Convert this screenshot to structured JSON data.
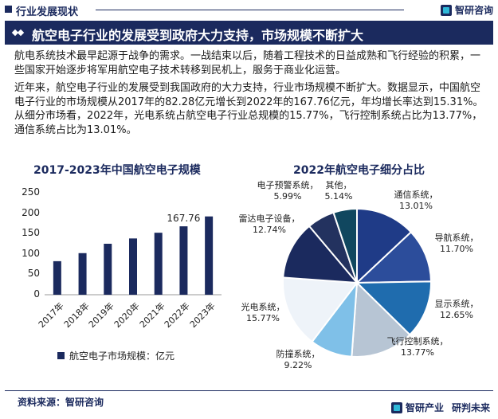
{
  "section_label": "行业发展现状",
  "brand": "智研咨询",
  "headline": "航空电子行业的发展受到政府大力支持，市场规模不断扩大",
  "paragraphs": [
    "航电系统技术最早起源于战争的需求。一战结束以后，随着工程技术的日益成熟和飞行经验的积累，一些国家开始逐步将军用航空电子技术转移到民机上，服务于商业化运营。",
    "近年来，航空电子行业的发展受到我国政府的大力支持，行业市场规模不断扩大。数据显示，中国航空电子行业的市场规模从2017年的82.28亿元增长到2022年的167.76亿元，年均增长率达到15.31%。从细分市场看，2022年，光电系统占航空电子行业总规模的15.77%，飞行控制系统占比为13.77%，通信系统占比为13.01%。"
  ],
  "footer": {
    "source": "资料来源：智研咨询",
    "slogan_left": "智研产业",
    "slogan_right": "研判未来"
  },
  "chart_data": [
    {
      "type": "bar",
      "title": "2017-2023年中国航空电子规模",
      "categories": [
        "2017年",
        "2018年",
        "2019年",
        "2020年",
        "2021年",
        "2022年",
        "2023年"
      ],
      "series": [
        {
          "name": "航空电子市场规模：亿元",
          "values": [
            82.28,
            102,
            125,
            138,
            152,
            167.76,
            192
          ]
        }
      ],
      "data_labels": [
        {
          "category": "2022年",
          "text": "167.76"
        }
      ],
      "yticks": [
        "0",
        "50",
        "100",
        "150",
        "200",
        "250"
      ],
      "ylim": [
        0,
        250
      ],
      "grid": false,
      "legend_position": "bottom",
      "color": "#1b2a5e"
    },
    {
      "type": "pie",
      "title": "2022年航空电子细分占比",
      "slices": [
        {
          "label": "通信系统，",
          "value": 13.01,
          "text": "13.01%",
          "color": "#1f3b87"
        },
        {
          "label": "导航系统，",
          "value": 11.7,
          "text": "11.70%",
          "color": "#2c4d9b"
        },
        {
          "label": "显示系统，",
          "value": 12.65,
          "text": "12.65%",
          "color": "#1f6cae"
        },
        {
          "label": "飞行控制系统，",
          "value": 13.77,
          "text": "13.77%",
          "color": "#b7c5d4"
        },
        {
          "label": "防撞系统，",
          "value": 9.22,
          "text": "9.22%",
          "color": "#7fc0e8"
        },
        {
          "label": "光电系统，",
          "value": 15.77,
          "text": "15.77%",
          "color": "#eef3f9"
        },
        {
          "label": "雷达电子设备，",
          "value": 12.74,
          "text": "12.74%",
          "color": "#1b2a5e"
        },
        {
          "label": "电子预警系统，",
          "value": 5.99,
          "text": "5.99%",
          "color": "#23325f"
        },
        {
          "label": "其他，",
          "value": 5.14,
          "text": "5.14%",
          "color": "#10475f"
        }
      ]
    }
  ]
}
